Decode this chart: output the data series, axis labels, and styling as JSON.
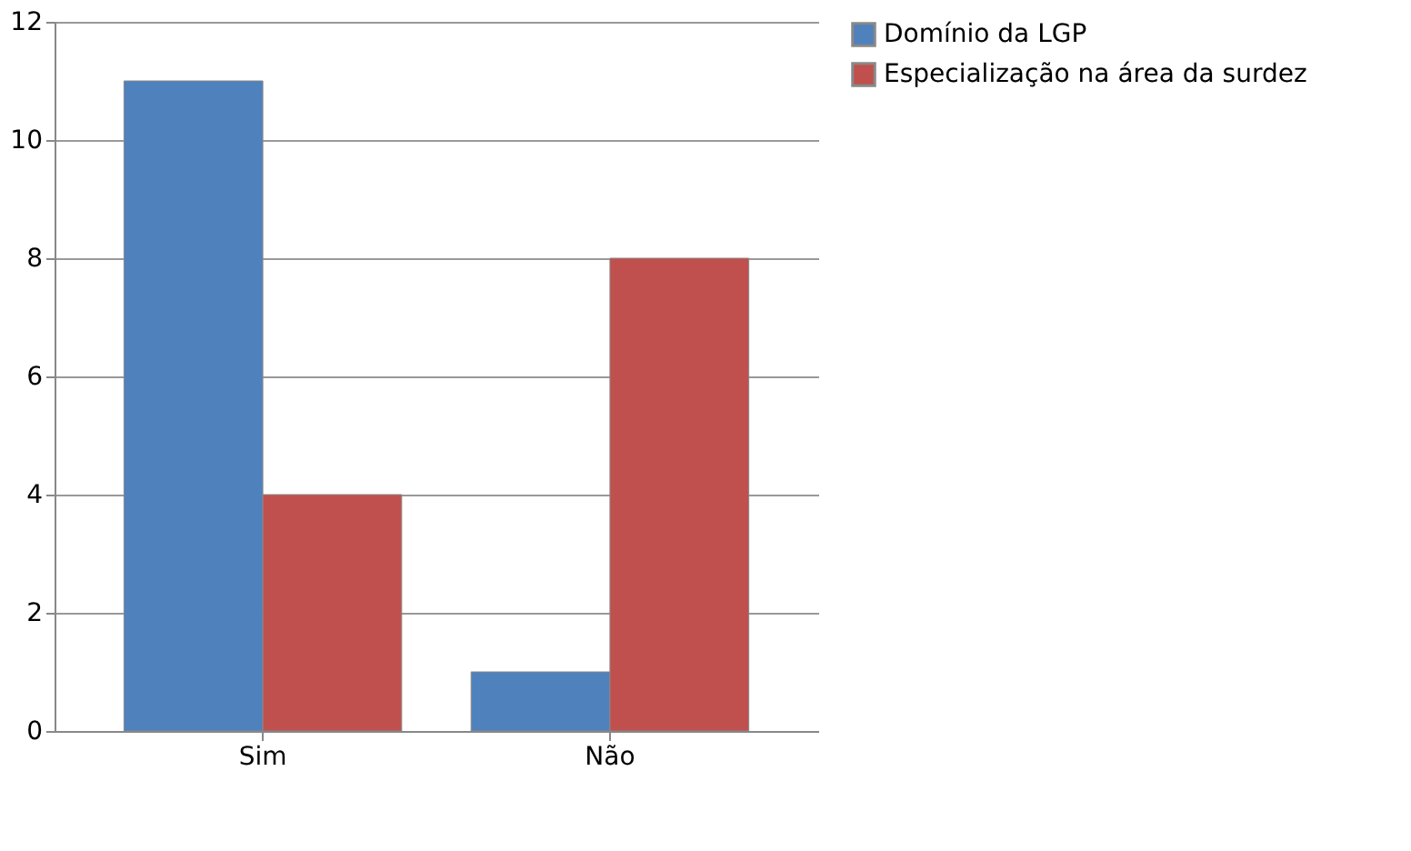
{
  "chart_data": {
    "type": "bar",
    "categories": [
      "Sim",
      "Não"
    ],
    "series": [
      {
        "name": "Domínio da LGP",
        "color": "#4f81bd",
        "values": [
          11,
          1
        ]
      },
      {
        "name": "Especialização na área da surdez",
        "color": "#c0504d",
        "values": [
          4,
          8
        ]
      }
    ],
    "ylim": [
      0,
      12
    ],
    "yticks": [
      0,
      2,
      4,
      6,
      8,
      10,
      12
    ],
    "grid": "y",
    "legend": "right"
  }
}
